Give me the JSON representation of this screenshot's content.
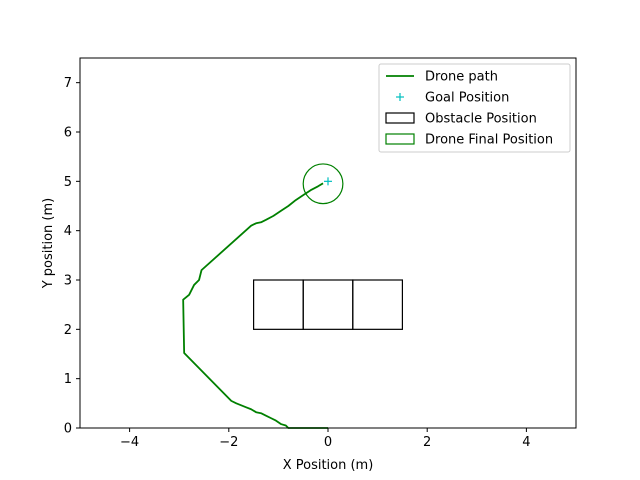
{
  "chart_data": {
    "type": "line",
    "xlabel": "X Position (m)",
    "ylabel": "Y position (m)",
    "xlim": [
      -5,
      5
    ],
    "ylim": [
      0,
      7.5
    ],
    "xticks": [
      -4,
      -2,
      0,
      2,
      4
    ],
    "yticks": [
      0,
      1,
      2,
      3,
      4,
      5,
      6,
      7
    ],
    "grid": false,
    "legend_position": "top-right",
    "series": [
      {
        "name": "Drone path",
        "kind": "line",
        "color": "#008000",
        "points": [
          [
            0.0,
            0.0
          ],
          [
            -0.8,
            0.0
          ],
          [
            -0.85,
            0.05
          ],
          [
            -0.95,
            0.08
          ],
          [
            -1.05,
            0.15
          ],
          [
            -1.15,
            0.2
          ],
          [
            -1.25,
            0.25
          ],
          [
            -1.35,
            0.3
          ],
          [
            -1.45,
            0.32
          ],
          [
            -1.55,
            0.38
          ],
          [
            -1.65,
            0.42
          ],
          [
            -1.75,
            0.46
          ],
          [
            -1.85,
            0.5
          ],
          [
            -1.95,
            0.55
          ],
          [
            -2.9,
            1.52
          ],
          [
            -2.92,
            2.6
          ],
          [
            -2.8,
            2.7
          ],
          [
            -2.7,
            2.9
          ],
          [
            -2.6,
            3.0
          ],
          [
            -2.55,
            3.2
          ],
          [
            -1.55,
            4.1
          ],
          [
            -1.45,
            4.15
          ],
          [
            -1.35,
            4.17
          ],
          [
            -1.25,
            4.22
          ],
          [
            -1.1,
            4.3
          ],
          [
            -0.95,
            4.4
          ],
          [
            -0.8,
            4.5
          ],
          [
            -0.65,
            4.62
          ],
          [
            -0.5,
            4.72
          ],
          [
            -0.35,
            4.82
          ],
          [
            -0.2,
            4.9
          ],
          [
            -0.1,
            4.96
          ]
        ]
      },
      {
        "name": "Goal Position",
        "kind": "marker",
        "color": "#00bfbf",
        "points": [
          [
            0.0,
            5.0
          ]
        ]
      },
      {
        "name": "Obstacle Position",
        "kind": "rect",
        "color": "#000000",
        "rects": [
          {
            "x": -1.5,
            "y": 2.0,
            "w": 1.0,
            "h": 1.0
          },
          {
            "x": -0.5,
            "y": 2.0,
            "w": 1.0,
            "h": 1.0
          },
          {
            "x": 0.5,
            "y": 2.0,
            "w": 1.0,
            "h": 1.0
          }
        ]
      },
      {
        "name": "Drone Final Position",
        "kind": "circle",
        "color": "#008000",
        "center": [
          -0.1,
          4.95
        ],
        "radius": 0.4
      }
    ]
  }
}
